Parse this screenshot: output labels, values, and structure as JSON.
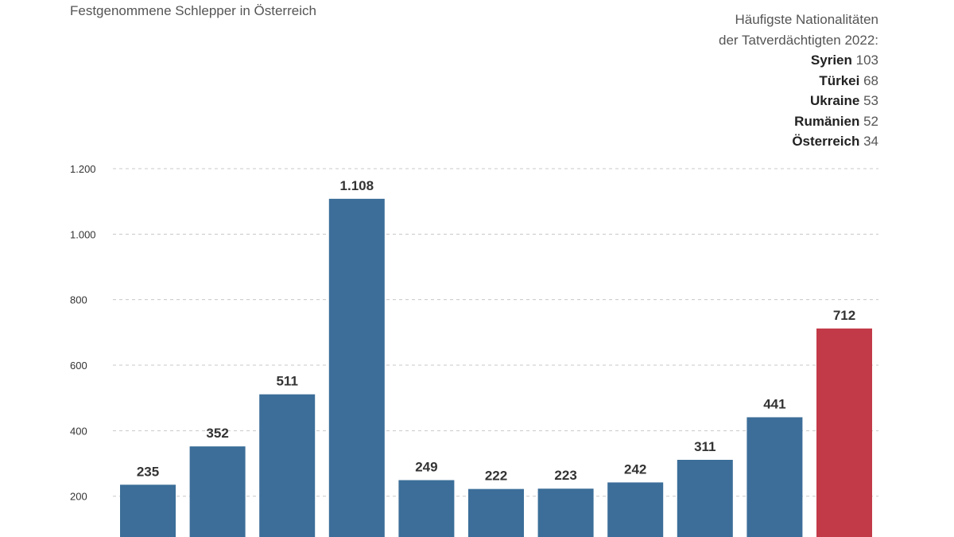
{
  "header": {
    "subtitle": "Festgenommene Schlepper in Österreich",
    "nationalities_title_1": "Häufigste Nationalitäten",
    "nationalities_title_2": "der Tatverdächtigten 2022:",
    "nationalities": [
      {
        "name": "Syrien",
        "count": "103"
      },
      {
        "name": "Türkei",
        "count": "68"
      },
      {
        "name": "Ukraine",
        "count": "53"
      },
      {
        "name": "Rumänien",
        "count": "52"
      },
      {
        "name": "Österreich",
        "count": "34"
      }
    ]
  },
  "chart_data": {
    "type": "bar",
    "title": "",
    "xlabel": "",
    "ylabel": "",
    "ylim": [
      150,
      1200
    ],
    "yticks": [
      200,
      400,
      600,
      800,
      1000,
      1200
    ],
    "ytick_labels": [
      "200",
      "400",
      "600",
      "800",
      "1.000",
      "1.200"
    ],
    "grid": true,
    "values": [
      235,
      352,
      511,
      1108,
      249,
      222,
      223,
      242,
      311,
      441,
      712
    ],
    "value_labels": [
      "235",
      "352",
      "511",
      "1.108",
      "249",
      "222",
      "223",
      "242",
      "311",
      "441",
      "712"
    ],
    "colors": [
      "#3c6e99",
      "#3c6e99",
      "#3c6e99",
      "#3c6e99",
      "#3c6e99",
      "#3c6e99",
      "#3c6e99",
      "#3c6e99",
      "#3c6e99",
      "#3c6e99",
      "#c23a48"
    ],
    "grid_color": "#c8c8c8"
  }
}
